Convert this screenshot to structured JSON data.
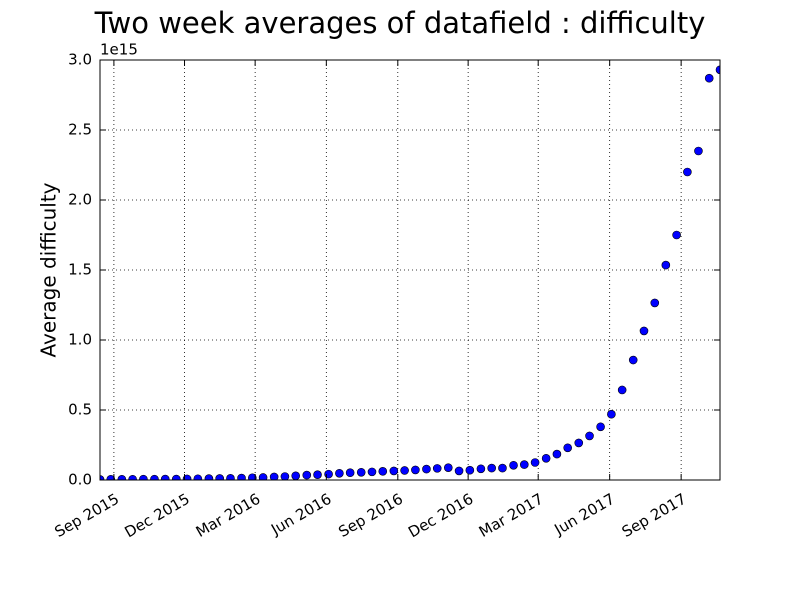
{
  "chart_data": {
    "type": "scatter",
    "title": "Two week averages of datafield : difficulty",
    "y_label": "Average difficulty",
    "y_offset_label": "1e15",
    "color": "#0000ff",
    "grid": true,
    "xlim": [
      2015.617,
      2017.803
    ],
    "xticks": [
      {
        "value": 2015.666,
        "label": "Sep 2015"
      },
      {
        "value": 2015.915,
        "label": "Dec 2015"
      },
      {
        "value": 2016.164,
        "label": "Mar 2016"
      },
      {
        "value": 2016.415,
        "label": "Jun 2016"
      },
      {
        "value": 2016.667,
        "label": "Sep 2016"
      },
      {
        "value": 2016.915,
        "label": "Dec 2016"
      },
      {
        "value": 2017.162,
        "label": "Mar 2017"
      },
      {
        "value": 2017.414,
        "label": "Jun 2017"
      },
      {
        "value": 2017.666,
        "label": "Sep 2017"
      }
    ],
    "ylim": [
      0,
      3
    ],
    "yticks": [
      {
        "value": 0,
        "label": "0.0"
      },
      0.5,
      {
        "value": 1,
        "label": "1.0"
      },
      1.5,
      {
        "value": 2,
        "label": "2.0"
      },
      2.5,
      {
        "value": 3,
        "label": "3.0"
      }
    ],
    "x": [
      2015.617,
      2015.655,
      2015.694,
      2015.732,
      2015.77,
      2015.809,
      2015.847,
      2015.886,
      2015.924,
      2015.962,
      2016.001,
      2016.039,
      2016.077,
      2016.116,
      2016.154,
      2016.192,
      2016.231,
      2016.269,
      2016.307,
      2016.346,
      2016.384,
      2016.423,
      2016.461,
      2016.499,
      2016.538,
      2016.576,
      2016.614,
      2016.653,
      2016.691,
      2016.729,
      2016.768,
      2016.806,
      2016.845,
      2016.883,
      2016.921,
      2016.96,
      2016.998,
      2017.036,
      2017.075,
      2017.113,
      2017.151,
      2017.19,
      2017.228,
      2017.266,
      2017.305,
      2017.343,
      2017.382,
      2017.42,
      2017.458,
      2017.497,
      2017.535,
      2017.573,
      2017.612,
      2017.65,
      2017.688,
      2017.727,
      2017.765,
      2017.803
    ],
    "values": [
      0.004,
      0.005,
      0.005,
      0.005,
      0.006,
      0.006,
      0.007,
      0.007,
      0.008,
      0.009,
      0.01,
      0.011,
      0.012,
      0.014,
      0.016,
      0.018,
      0.022,
      0.025,
      0.03,
      0.035,
      0.038,
      0.042,
      0.048,
      0.052,
      0.055,
      0.058,
      0.062,
      0.065,
      0.068,
      0.072,
      0.078,
      0.083,
      0.088,
      0.065,
      0.07,
      0.08,
      0.085,
      0.085,
      0.105,
      0.11,
      0.125,
      0.155,
      0.185,
      0.23,
      0.265,
      0.315,
      0.38,
      0.47,
      0.643,
      0.857,
      1.065,
      1.265,
      1.535,
      1.75,
      2.2,
      2.35,
      2.87,
      2.93
    ]
  }
}
